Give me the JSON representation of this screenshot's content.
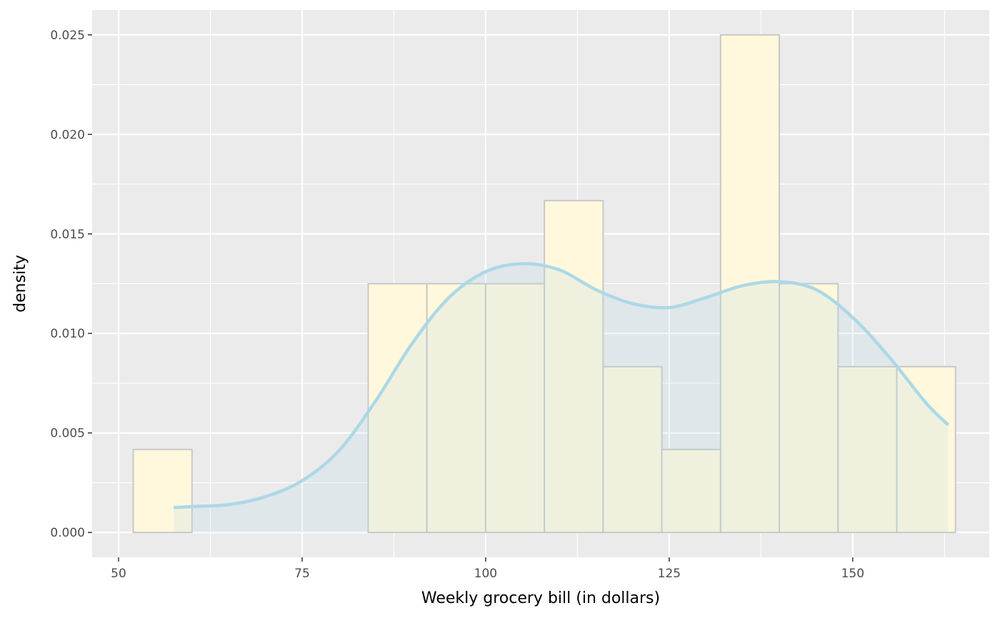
{
  "chart_data": {
    "type": "histogram",
    "xlabel": "Weekly grocery bill (in dollars)",
    "ylabel": "density",
    "xlim": [
      46.4,
      168.6
    ],
    "ylim": [
      -0.00125,
      0.02625
    ],
    "x_ticks": [
      50,
      75,
      100,
      125,
      150
    ],
    "y_ticks": [
      0.0,
      0.005,
      0.01,
      0.015,
      0.02,
      0.025
    ],
    "y_tick_labels": [
      "0.000",
      "0.005",
      "0.010",
      "0.015",
      "0.020",
      "0.025"
    ],
    "grid": true,
    "bin_width": 8,
    "bins": [
      {
        "x0": 52,
        "x1": 60,
        "density": 0.00417
      },
      {
        "x0": 60,
        "x1": 68,
        "density": 0
      },
      {
        "x0": 68,
        "x1": 76,
        "density": 0
      },
      {
        "x0": 76,
        "x1": 84,
        "density": 0
      },
      {
        "x0": 84,
        "x1": 92,
        "density": 0.0125
      },
      {
        "x0": 92,
        "x1": 100,
        "density": 0.0125
      },
      {
        "x0": 100,
        "x1": 108,
        "density": 0.0125
      },
      {
        "x0": 108,
        "x1": 116,
        "density": 0.01667
      },
      {
        "x0": 116,
        "x1": 124,
        "density": 0.00833
      },
      {
        "x0": 124,
        "x1": 132,
        "density": 0.00417
      },
      {
        "x0": 132,
        "x1": 140,
        "density": 0.025
      },
      {
        "x0": 140,
        "x1": 148,
        "density": 0.0125
      },
      {
        "x0": 148,
        "x1": 156,
        "density": 0.00833
      },
      {
        "x0": 156,
        "x1": 164,
        "density": 0.00833
      }
    ],
    "density_curve": {
      "x": [
        57.5,
        60,
        65,
        70,
        75,
        80,
        85,
        90,
        95,
        100,
        105,
        110,
        115,
        120,
        125,
        130,
        135,
        140,
        145,
        150,
        155,
        160,
        163
      ],
      "y": [
        0.00125,
        0.0013,
        0.0014,
        0.0018,
        0.0026,
        0.0041,
        0.0066,
        0.0095,
        0.0118,
        0.0131,
        0.0135,
        0.0132,
        0.0122,
        0.0115,
        0.0113,
        0.0118,
        0.0124,
        0.0126,
        0.0122,
        0.0108,
        0.0088,
        0.0065,
        0.0054
      ]
    },
    "colors": {
      "panel_background": "#EBEBEB",
      "gridline": "#FFFFFF",
      "bar_fill": "#FFF8DC",
      "bar_outline": "#C8C8C8",
      "density_line": "#ADD8E6",
      "density_fill": "#ADD8E6"
    }
  }
}
